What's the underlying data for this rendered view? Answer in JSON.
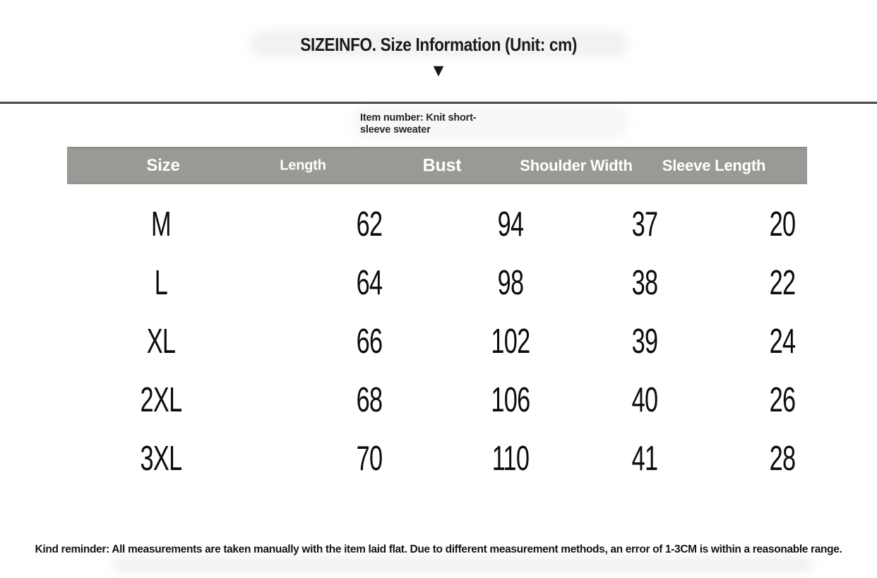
{
  "page": {
    "title": "SIZEINFO. Size Information (Unit: cm)",
    "item_note_line1": "Item number: Knit short-",
    "item_note_line2": "sleeve sweater",
    "reminder": "Kind reminder: All measurements are taken manually with the item laid flat. Due to different measurement methods, an error of 1-3CM is within a reasonable range."
  },
  "icons": {
    "down_triangle": "▼"
  },
  "colors": {
    "header_bg": "#9a9995",
    "header_text": "#ffffff",
    "divider": "#262626",
    "body_text": "#0d0d0d"
  },
  "size_table": {
    "headers": [
      "Size",
      "Length",
      "Bust",
      "Shoulder Width",
      "Sleeve Length"
    ],
    "rows": [
      [
        "M",
        "62",
        "94",
        "37",
        "20"
      ],
      [
        "L",
        "64",
        "98",
        "38",
        "22"
      ],
      [
        "XL",
        "66",
        "102",
        "39",
        "24"
      ],
      [
        "2XL",
        "68",
        "106",
        "40",
        "26"
      ],
      [
        "3XL",
        "70",
        "110",
        "41",
        "28"
      ]
    ]
  }
}
